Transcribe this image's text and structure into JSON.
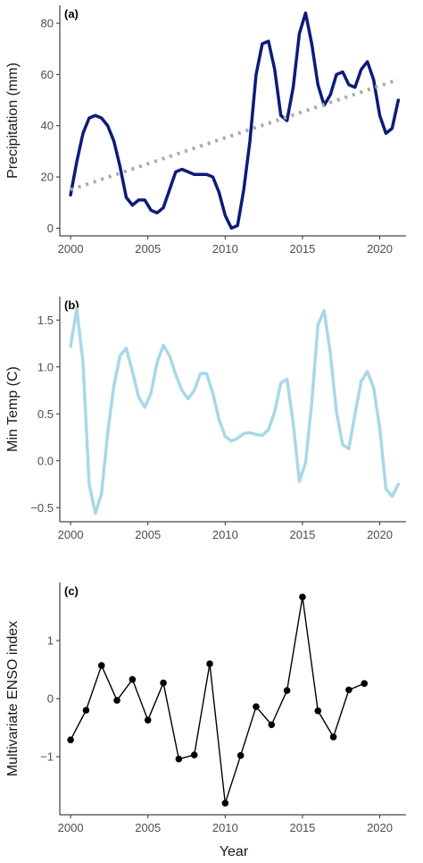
{
  "figure": {
    "xlabel": "Year"
  },
  "colors": {
    "precip": "#0d1b7a",
    "trend": "#a9a9b3",
    "temp": "#a8d8e8",
    "enso": "#000000"
  },
  "chart_data": [
    {
      "type": "line",
      "panel": "(a)",
      "ylabel": "Precipitation (mm)",
      "xlim": [
        1999.3,
        2021.7
      ],
      "ylim": [
        -3,
        87
      ],
      "xticks": [
        2000,
        2005,
        2010,
        2015,
        2020
      ],
      "yticks": [
        0,
        20,
        40,
        60,
        80
      ],
      "series": [
        {
          "role": "observed",
          "style": "solid",
          "x": [
            2000,
            2000.4,
            2000.8,
            2001.2,
            2001.6,
            2002,
            2002.4,
            2002.8,
            2003.2,
            2003.6,
            2004,
            2004.4,
            2004.8,
            2005.2,
            2005.6,
            2006,
            2006.4,
            2006.8,
            2007.2,
            2007.6,
            2008,
            2008.4,
            2008.8,
            2009.2,
            2009.6,
            2010,
            2010.4,
            2010.8,
            2011.2,
            2011.6,
            2012,
            2012.4,
            2012.8,
            2013.2,
            2013.6,
            2014,
            2014.4,
            2014.8,
            2015.2,
            2015.6,
            2016,
            2016.4,
            2016.8,
            2017.2,
            2017.6,
            2018,
            2018.4,
            2018.8,
            2019.2,
            2019.6,
            2020,
            2020.4,
            2020.8,
            2021.2
          ],
          "y": [
            13,
            26,
            37,
            43,
            44,
            43,
            40,
            34,
            24,
            12,
            9,
            11,
            11,
            7,
            6,
            8,
            15,
            22,
            23,
            22,
            21,
            21,
            21,
            20,
            14,
            5,
            0,
            1,
            15,
            34,
            60,
            72,
            73,
            62,
            44,
            42,
            55,
            76,
            84,
            72,
            56,
            48,
            52,
            60,
            61,
            56,
            55,
            62,
            65,
            58,
            44,
            37,
            39,
            50
          ]
        },
        {
          "role": "trend",
          "style": "dotted",
          "x": [
            2000,
            2021.2
          ],
          "y": [
            15,
            58
          ]
        }
      ]
    },
    {
      "type": "line",
      "panel": "(b)",
      "ylabel": "Min Temp (C)",
      "xlim": [
        1999.3,
        2021.7
      ],
      "ylim": [
        -0.65,
        1.75
      ],
      "xticks": [
        2000,
        2005,
        2010,
        2015,
        2020
      ],
      "yticks": [
        -0.5,
        0.0,
        0.5,
        1.0,
        1.5
      ],
      "series": [
        {
          "style": "solid",
          "x": [
            2000,
            2000.4,
            2000.8,
            2001.2,
            2001.6,
            2002,
            2002.4,
            2002.8,
            2003.2,
            2003.6,
            2004,
            2004.4,
            2004.8,
            2005.2,
            2005.6,
            2006,
            2006.4,
            2006.8,
            2007.2,
            2007.6,
            2008,
            2008.4,
            2008.8,
            2009.2,
            2009.6,
            2010,
            2010.4,
            2010.8,
            2011.2,
            2011.6,
            2012,
            2012.4,
            2012.8,
            2013.2,
            2013.6,
            2014,
            2014.4,
            2014.8,
            2015.2,
            2015.6,
            2016,
            2016.4,
            2016.8,
            2017.2,
            2017.6,
            2018,
            2018.4,
            2018.8,
            2019.2,
            2019.6,
            2020,
            2020.4,
            2020.8,
            2021.2
          ],
          "y": [
            1.22,
            1.62,
            1.05,
            -0.25,
            -0.56,
            -0.35,
            0.3,
            0.8,
            1.12,
            1.2,
            0.95,
            0.68,
            0.57,
            0.72,
            1.05,
            1.23,
            1.12,
            0.92,
            0.75,
            0.66,
            0.75,
            0.93,
            0.93,
            0.72,
            0.44,
            0.26,
            0.21,
            0.24,
            0.29,
            0.3,
            0.28,
            0.27,
            0.33,
            0.52,
            0.83,
            0.87,
            0.4,
            -0.22,
            -0.02,
            0.62,
            1.45,
            1.6,
            1.15,
            0.52,
            0.17,
            0.13,
            0.5,
            0.85,
            0.95,
            0.78,
            0.35,
            -0.3,
            -0.38,
            -0.25
          ]
        }
      ]
    },
    {
      "type": "line",
      "panel": "(c)",
      "ylabel": "Multivariate ENSO index",
      "xlim": [
        1999.3,
        2021.7
      ],
      "ylim": [
        -2.0,
        2.0
      ],
      "xticks": [
        2000,
        2005,
        2010,
        2015,
        2020
      ],
      "yticks": [
        -1,
        0,
        1
      ],
      "series": [
        {
          "style": "solid-with-points",
          "x": [
            2000,
            2001,
            2002,
            2003,
            2004,
            2005,
            2006,
            2007,
            2008,
            2009,
            2010,
            2011,
            2012,
            2013,
            2014,
            2015,
            2016,
            2017,
            2018,
            2019
          ],
          "y": [
            -0.71,
            -0.2,
            0.57,
            -0.03,
            0.33,
            -0.37,
            0.27,
            -1.04,
            -0.97,
            0.6,
            -1.8,
            -0.98,
            -0.14,
            -0.45,
            0.14,
            1.75,
            -0.21,
            -0.66,
            0.15,
            0.26
          ]
        }
      ]
    }
  ]
}
